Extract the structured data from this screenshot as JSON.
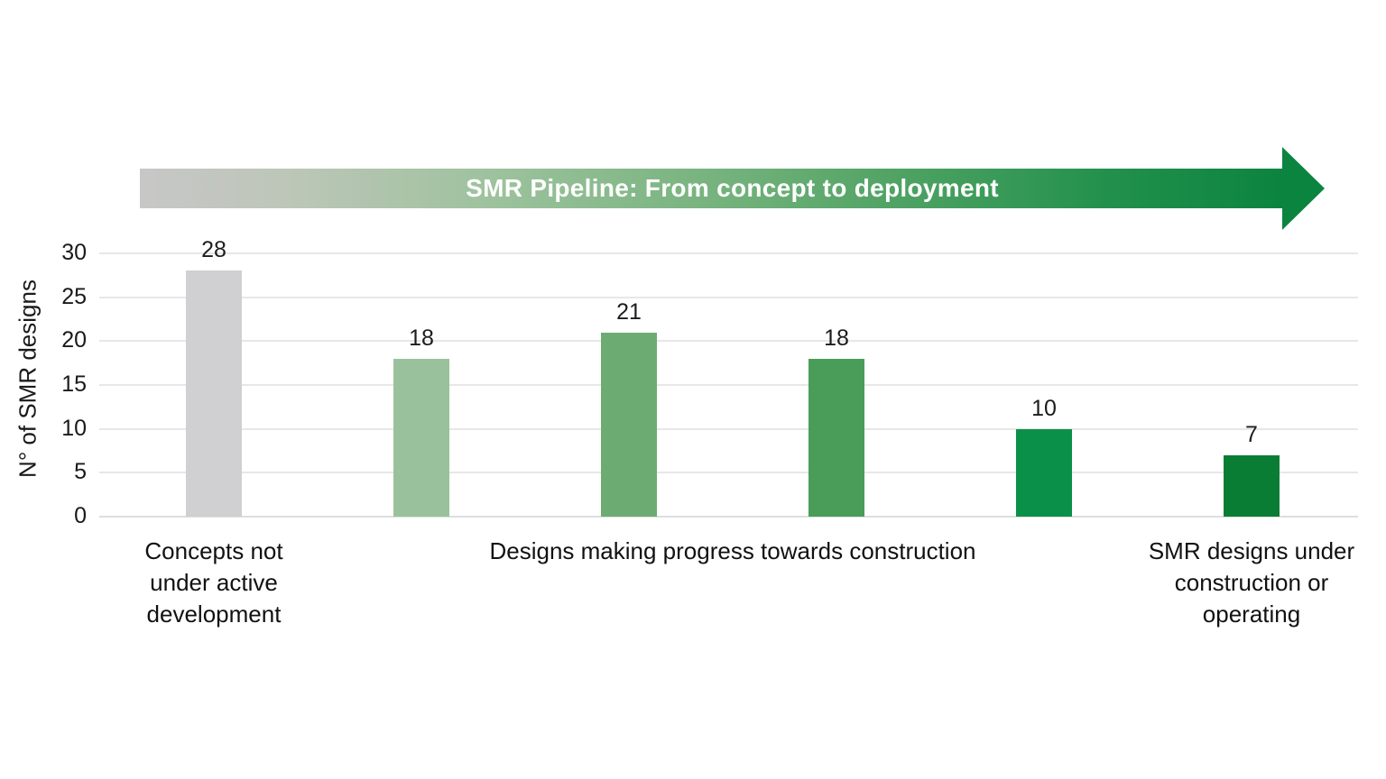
{
  "banner": {
    "title": "SMR Pipeline: From concept to deployment",
    "gradient_start_color": "#c7c7c7",
    "gradient_end_color": "#0b8440"
  },
  "chart_data": {
    "type": "bar",
    "title": "SMR Pipeline: From concept to deployment",
    "xlabel": "",
    "ylabel": "N° of SMR designs",
    "ylim": [
      0,
      30
    ],
    "yticks": [
      0,
      5,
      10,
      15,
      20,
      25,
      30
    ],
    "grid": true,
    "legend_position": "none",
    "values": [
      28,
      18,
      21,
      18,
      10,
      7
    ],
    "bar_colors": [
      "#d0d0d2",
      "#99c29c",
      "#6cab72",
      "#4a9d58",
      "#0a9048",
      "#0a7d35"
    ],
    "value_labels": [
      "28",
      "18",
      "21",
      "18",
      "10",
      "7"
    ],
    "group_labels": [
      {
        "text": "Concepts not under active development",
        "lines": [
          "Concepts not",
          "under active",
          "development"
        ],
        "bars": [
          0,
          0
        ]
      },
      {
        "text": "Designs making progress towards construction",
        "lines": [
          "Designs making progress towards construction"
        ],
        "bars": [
          1,
          4
        ]
      },
      {
        "text": "SMR designs under construction or operating",
        "lines": [
          "SMR designs under",
          "construction or",
          "operating"
        ],
        "bars": [
          5,
          5
        ]
      }
    ]
  }
}
